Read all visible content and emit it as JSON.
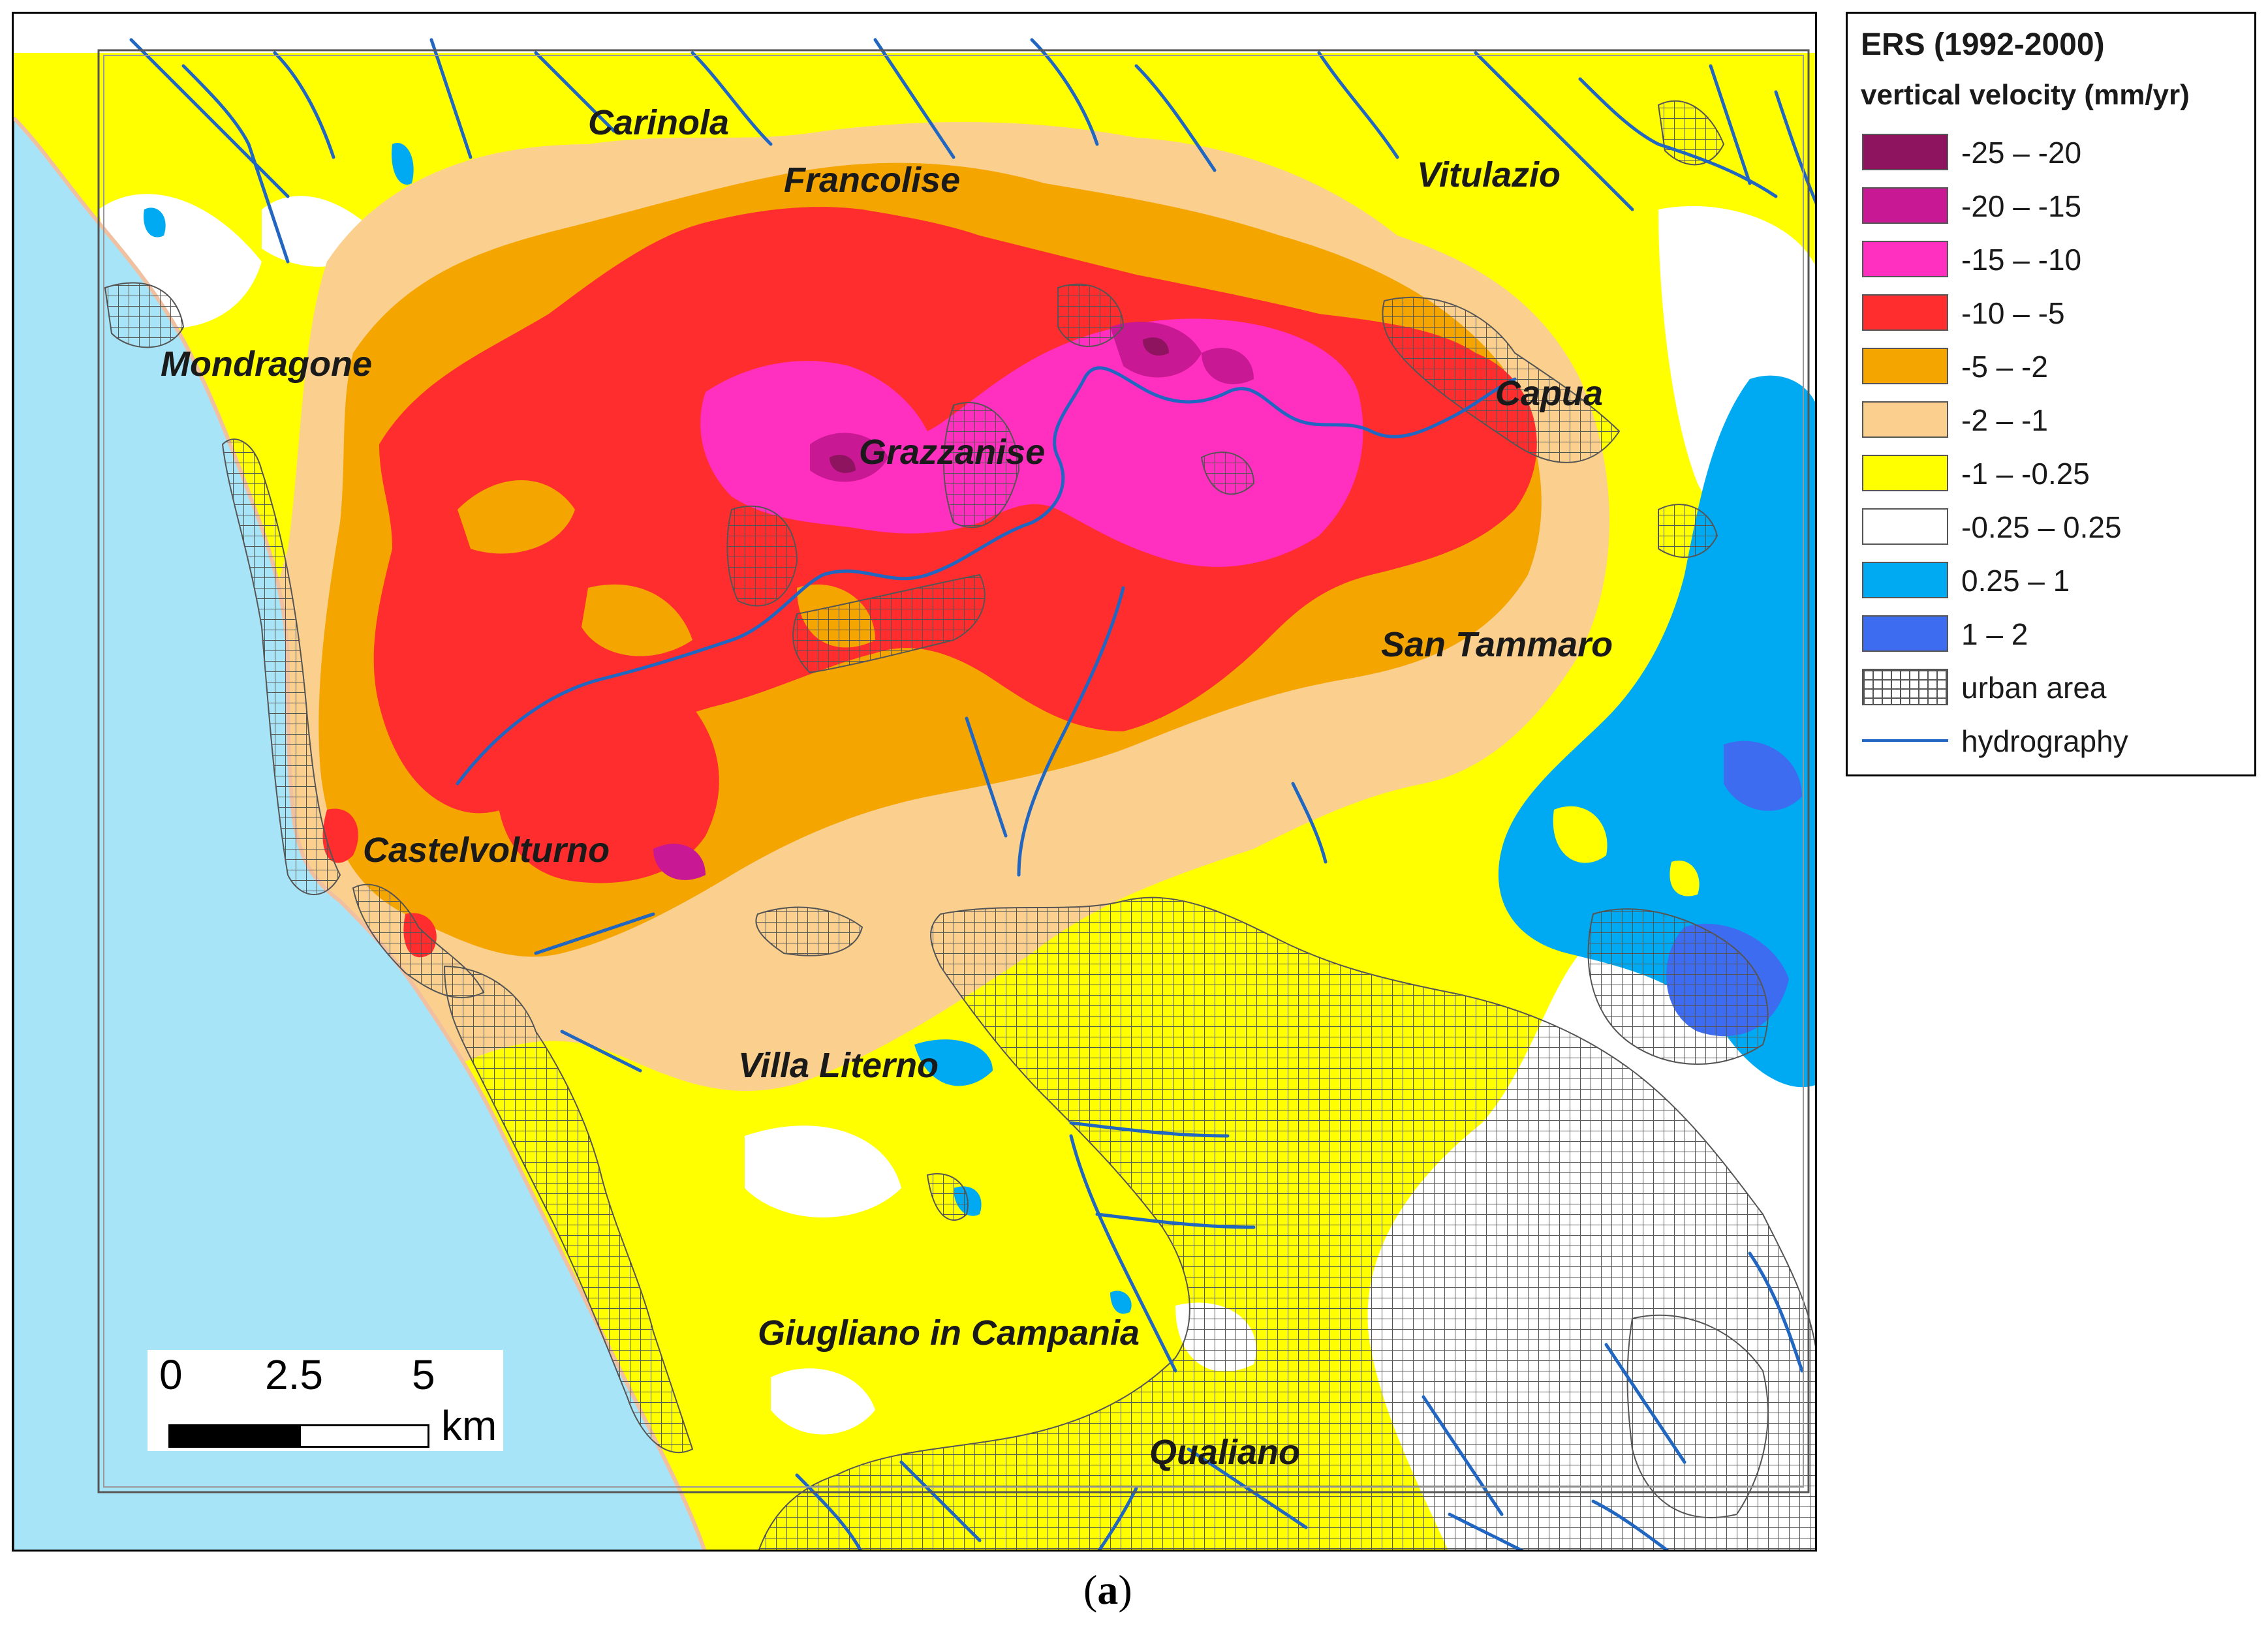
{
  "map": {
    "towns": [
      {
        "name": "Carinola"
      },
      {
        "name": "Francolise"
      },
      {
        "name": "Vitulazio"
      },
      {
        "name": "Mondragone"
      },
      {
        "name": "Capua"
      },
      {
        "name": "Grazzanise"
      },
      {
        "name": "San Tammaro"
      },
      {
        "name": "Castelvolturno"
      },
      {
        "name": "Villa Literno"
      },
      {
        "name": "Giugliano in Campania"
      },
      {
        "name": "Qualiano"
      }
    ],
    "scalebar": {
      "ticks": [
        "0",
        "2.5",
        "5"
      ],
      "unit": "km"
    },
    "colors": {
      "sea": "#a8e4f7",
      "hydrography": "#2166c0",
      "urban_grid": "#555555"
    }
  },
  "legend": {
    "title": "ERS (1992-2000)",
    "subtitle": "vertical velocity (mm/yr)",
    "items": [
      {
        "label": "-25 – -20",
        "color": "#8e1460"
      },
      {
        "label": "-20 – -15",
        "color": "#c81894"
      },
      {
        "label": "-15 – -10",
        "color": "#ff2fc0"
      },
      {
        "label": "-10 – -5",
        "color": "#ff2d2d"
      },
      {
        "label": "-5 – -2",
        "color": "#f5a500"
      },
      {
        "label": "-2 – -1",
        "color": "#fbd08e"
      },
      {
        "label": "-1 – -0.25",
        "color": "#ffff00"
      },
      {
        "label": "-0.25 – 0.25",
        "color": "#ffffff"
      },
      {
        "label": "0.25 – 1",
        "color": "#00aaf2"
      },
      {
        "label": "1 – 2",
        "color": "#3d6cf0"
      },
      {
        "label": "urban  area",
        "color": "grid"
      },
      {
        "label": "hydrography",
        "color": "line"
      }
    ]
  },
  "caption": {
    "open": "(",
    "letter": "a",
    "close": ")"
  }
}
